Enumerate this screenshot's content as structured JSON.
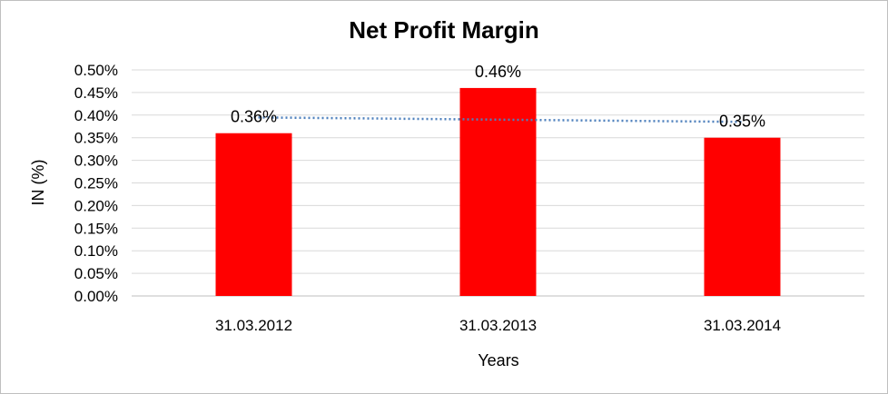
{
  "chart_data": {
    "type": "bar",
    "title": "Net Profit Margin",
    "xlabel": "Years",
    "ylabel": "IN (%)",
    "categories": [
      "31.03.2012",
      "31.03.2013",
      "31.03.2014"
    ],
    "values": [
      0.36,
      0.46,
      0.35
    ],
    "value_labels": [
      "0.36%",
      "0.46%",
      "0.35%"
    ],
    "ylim": [
      0,
      0.5
    ],
    "y_ticks": [
      0,
      0.05,
      0.1,
      0.15,
      0.2,
      0.25,
      0.3,
      0.35,
      0.4,
      0.45,
      0.5
    ],
    "y_tick_labels": [
      "0.00%",
      "0.05%",
      "0.10%",
      "0.15%",
      "0.20%",
      "0.25%",
      "0.30%",
      "0.35%",
      "0.40%",
      "0.45%",
      "0.50%"
    ],
    "bar_color": "#ff0000",
    "trendline": {
      "type": "linear",
      "style": "dotted",
      "color": "#4f81bd"
    },
    "grid": true,
    "legend": "none"
  }
}
